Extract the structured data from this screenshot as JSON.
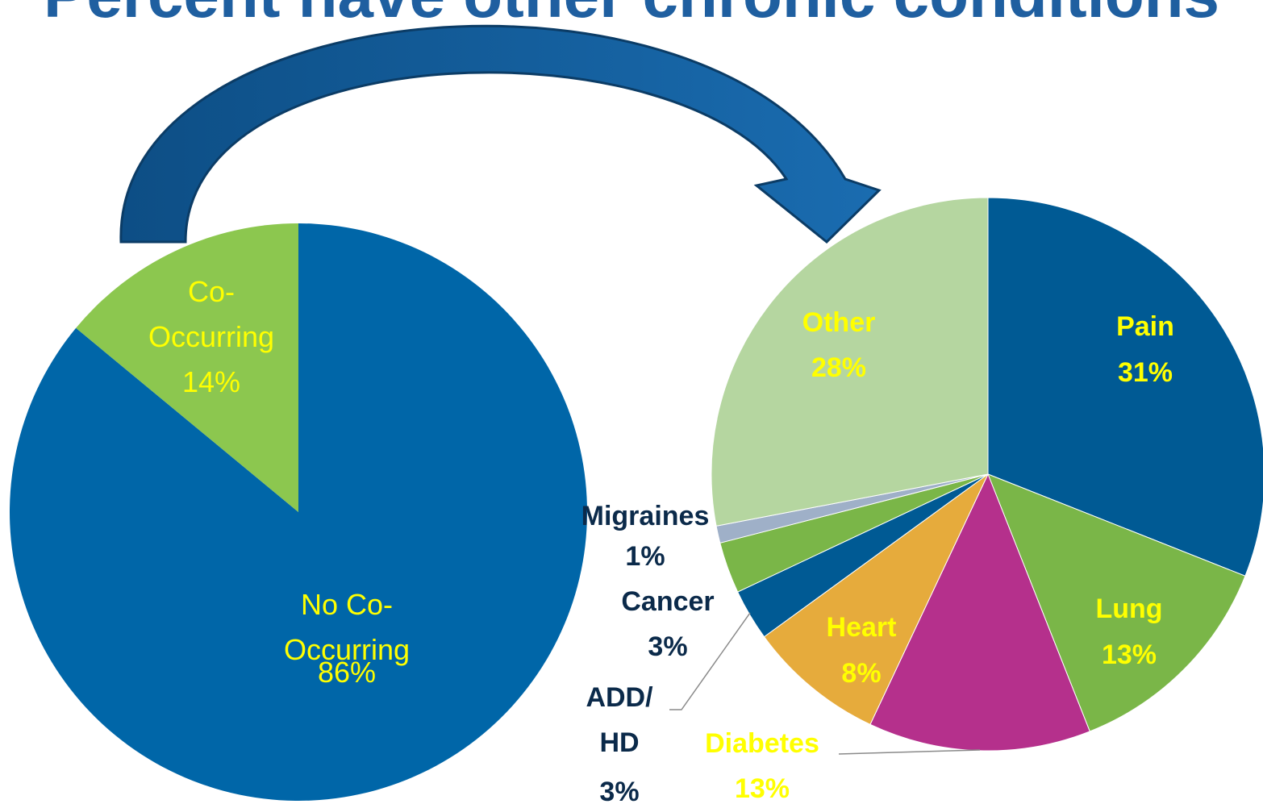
{
  "title": "Percent have other chronic conditions",
  "chart_data": [
    {
      "type": "pie",
      "categories": [
        "No Co-Occurring",
        "Co-Occurring"
      ],
      "values": [
        86,
        14
      ],
      "value_labels": [
        "86%",
        "14%"
      ],
      "colors": [
        "#0066a8",
        "#8cc74f"
      ],
      "label_colors": [
        "#ffff00",
        "#ffff00"
      ]
    },
    {
      "type": "pie",
      "categories": [
        "Pain",
        "Lung",
        "Diabetes",
        "Heart",
        "ADD/HD",
        "Cancer",
        "Migraines",
        "Other"
      ],
      "values": [
        31,
        13,
        13,
        8,
        3,
        3,
        1,
        28
      ],
      "value_labels": [
        "31%",
        "13%",
        "13%",
        "8%",
        "3%",
        "3%",
        "1%",
        "28%"
      ],
      "colors": [
        "#005a94",
        "#7ab648",
        "#b5308c",
        "#e6ab3c",
        "#005a94",
        "#7ab648",
        "#9fb0c8",
        "#b5d6a0"
      ],
      "label_colors": [
        "#ffff00",
        "#ffff00",
        "#ffff00",
        "#ffff00",
        "#0b2a4a",
        "#0b2a4a",
        "#0b2a4a",
        "#ffff00"
      ]
    }
  ]
}
